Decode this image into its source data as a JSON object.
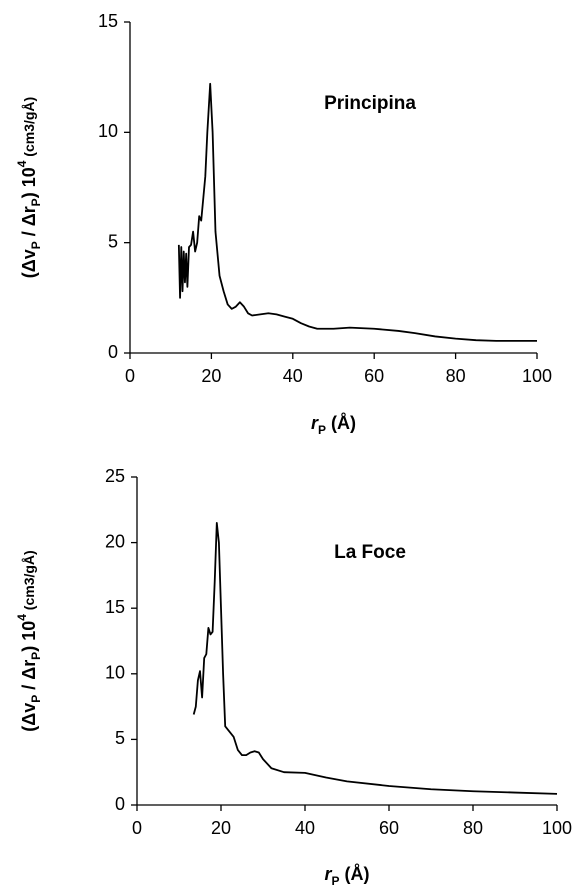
{
  "chart_data": [
    {
      "type": "line",
      "annotation": "Principina",
      "xlabel": [
        "r",
        "P",
        " (Å)"
      ],
      "ylabel": [
        "(Δv",
        "P",
        " / Δr",
        "P",
        ") 10",
        "4",
        " (cm3/gÅ)"
      ],
      "x": [
        12,
        12.3,
        12.6,
        12.9,
        13.2,
        13.5,
        13.8,
        14.1,
        14.5,
        15,
        15.5,
        16,
        16.5,
        17,
        17.5,
        18,
        18.5,
        19,
        19.7,
        20.3,
        21,
        22,
        23,
        24,
        25,
        26,
        27,
        28,
        29,
        30,
        32,
        34,
        36,
        38,
        40,
        42,
        44,
        46,
        50,
        54,
        60,
        66,
        70,
        75,
        80,
        85,
        90,
        95,
        100
      ],
      "values": [
        4.9,
        2.5,
        4.8,
        2.8,
        4.6,
        3.2,
        4.5,
        3.0,
        4.8,
        4.9,
        5.5,
        4.6,
        5.0,
        6.2,
        6.0,
        7.0,
        8.0,
        10,
        12.2,
        10,
        5.5,
        3.5,
        2.8,
        2.2,
        2.0,
        2.1,
        2.3,
        2.1,
        1.8,
        1.7,
        1.75,
        1.8,
        1.75,
        1.65,
        1.55,
        1.35,
        1.2,
        1.1,
        1.1,
        1.15,
        1.1,
        1.0,
        0.9,
        0.75,
        0.65,
        0.58,
        0.55,
        0.55,
        0.55
      ],
      "color": "#000000",
      "xlim": [
        0,
        100
      ],
      "xticks": [
        0,
        20,
        40,
        60,
        80,
        100
      ],
      "ylim": [
        0,
        15
      ],
      "yticks": [
        0,
        5,
        10,
        15
      ]
    },
    {
      "type": "line",
      "annotation": "La Foce",
      "xlabel": [
        "r",
        "P",
        " (Å)"
      ],
      "ylabel": [
        "(Δv",
        "P",
        " / Δr",
        "P",
        ") 10",
        "4",
        " (cm3/gÅ)"
      ],
      "x": [
        13.5,
        14,
        14.5,
        15,
        15.5,
        16,
        16.5,
        17,
        17.5,
        18,
        18.5,
        19,
        19.5,
        20,
        20.5,
        21,
        22,
        23,
        24,
        25,
        26,
        27,
        28,
        29,
        30,
        32,
        35,
        40,
        45,
        50,
        60,
        70,
        80,
        90,
        100
      ],
      "values": [
        6.9,
        7.5,
        9.5,
        10.2,
        8.2,
        11.2,
        11.5,
        13.5,
        13.0,
        13.2,
        17,
        21.5,
        20,
        15,
        10,
        6,
        5.6,
        5.2,
        4.2,
        3.8,
        3.8,
        4.0,
        4.1,
        4.0,
        3.5,
        2.8,
        2.5,
        2.45,
        2.1,
        1.8,
        1.45,
        1.2,
        1.05,
        0.95,
        0.85
      ],
      "color": "#000000",
      "xlim": [
        0,
        100
      ],
      "xticks": [
        0,
        20,
        40,
        60,
        80,
        100
      ],
      "ylim": [
        0,
        25
      ],
      "yticks": [
        0,
        5,
        10,
        15,
        20,
        25
      ]
    }
  ]
}
